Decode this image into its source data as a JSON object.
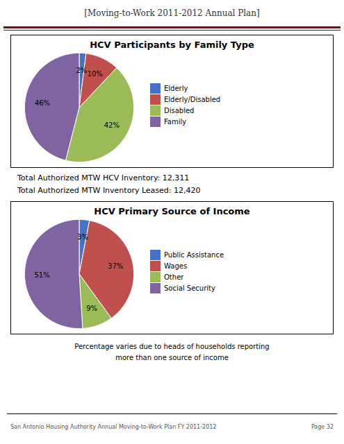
{
  "title": "[Moving-to-Work 2011-2012 Annual Plan]",
  "color": "#5a1a1a",
  "annotations": [
    "San Antonio Housing Authority Annual Moving-to-Work Plan FY 2011-2012",
    "Page 32"
  ],
  "chart_data": [
    {
      "type": "pie",
      "title": "HCV Participants by Family Type",
      "categories": [
        "Elderly",
        "Elderly/Disabled",
        "Disabled",
        "Family"
      ],
      "values": [
        2,
        10,
        42,
        46
      ],
      "value_labels": [
        "2%",
        "10%",
        "42%",
        "46%"
      ],
      "colors": [
        "#4472c4",
        "#c0504d",
        "#9bbb59",
        "#8064a2"
      ],
      "data_labels": true,
      "legend": "right",
      "annotations": [
        "Total Authorized MTW HCV Inventory: 12,311",
        "Total Authorized MTW Inventory Leased: 12,420"
      ]
    },
    {
      "type": "pie",
      "title": "HCV Primary Source of Income",
      "categories": [
        "Public Assistance",
        "Wages",
        "Other",
        "Social Security"
      ],
      "values": [
        3,
        37,
        9,
        51
      ],
      "value_labels": [
        "3%",
        "37%",
        "9%",
        "51%"
      ],
      "colors": [
        "#4472c4",
        "#c0504d",
        "#9bbb59",
        "#8064a2"
      ],
      "data_labels": true,
      "legend": "right",
      "annotations": [
        "Percentage varies due to heads of households reporting",
        "more than one source of income"
      ]
    }
  ]
}
